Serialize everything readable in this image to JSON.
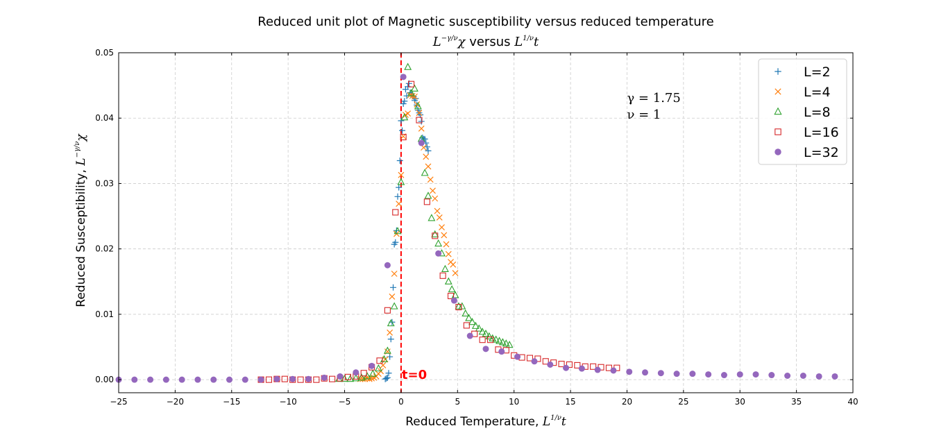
{
  "chart_data": {
    "type": "scatter",
    "title": "Reduced unit plot of Magnetic susceptibility versus reduced temperature",
    "subtitle": {
      "pre": "L",
      "sup": "−γ/ν",
      "mid": "χ  versus  L",
      "sup2": "1/ν",
      "post": "t"
    },
    "xlabel": {
      "text": "Reduced Temperature,  L",
      "sup": "1/ν",
      "post": "t"
    },
    "ylabel": {
      "text": "Reduced Susceptibility,  L",
      "sup": "−γ/ν",
      "post": "χ"
    },
    "xlim": [
      -25,
      40
    ],
    "ylim": [
      -0.002,
      0.05
    ],
    "xticks": [
      -25,
      -20,
      -15,
      -10,
      -5,
      0,
      5,
      10,
      15,
      20,
      25,
      30,
      35,
      40
    ],
    "yticks": [
      0.0,
      0.01,
      0.02,
      0.03,
      0.04,
      0.05
    ],
    "ytick_labels": [
      "0.00",
      "0.01",
      "0.02",
      "0.03",
      "0.04",
      "0.05"
    ],
    "grid": true,
    "legend_position": "top-right",
    "vline": {
      "x": 0,
      "label": "t=0",
      "color": "#ff0000"
    },
    "annotations": [
      "γ = 1.75",
      "ν = 1"
    ],
    "series": [
      {
        "name": "L=2",
        "marker": "plus",
        "color": "#1f77b4",
        "x": [
          -1.4,
          -1.3,
          -1.2,
          -1.1,
          -1.0,
          -0.9,
          -0.8,
          -0.7,
          -0.6,
          -0.5,
          -0.4,
          -0.3,
          -0.2,
          -0.1,
          0.0,
          0.1,
          0.2,
          0.3,
          0.4,
          0.5,
          0.6,
          0.7,
          0.8,
          0.9,
          1.0,
          1.1,
          1.2,
          1.3,
          1.4,
          1.5,
          1.6,
          1.7,
          1.8,
          1.9,
          2.0,
          2.1,
          2.2,
          2.3,
          2.4
        ],
        "y": [
          0.0001,
          0.0002,
          0.0003,
          0.001,
          0.0035,
          0.0062,
          0.0088,
          0.0141,
          0.0207,
          0.021,
          0.0228,
          0.028,
          0.0294,
          0.0335,
          0.0396,
          0.0381,
          0.0422,
          0.0426,
          0.0444,
          0.0434,
          0.0448,
          0.0453,
          0.0439,
          0.0436,
          0.0434,
          0.0433,
          0.0427,
          0.043,
          0.042,
          0.0412,
          0.0408,
          0.0405,
          0.0395,
          0.037,
          0.0368,
          0.0368,
          0.0362,
          0.0356,
          0.035
        ]
      },
      {
        "name": "L=4",
        "marker": "x",
        "color": "#ff7f0e",
        "x": [
          -3.6,
          -3.4,
          -3.2,
          -3.0,
          -2.8,
          -2.6,
          -2.4,
          -2.2,
          -2.0,
          -1.8,
          -1.6,
          -1.4,
          -1.2,
          -1.0,
          -0.8,
          -0.6,
          -0.4,
          -0.2,
          0.0,
          0.2,
          0.4,
          0.6,
          0.8,
          1.0,
          1.2,
          1.4,
          1.6,
          1.8,
          2.0,
          2.2,
          2.4,
          2.6,
          2.8,
          3.0,
          3.2,
          3.4,
          3.6,
          3.8,
          4.0,
          4.2,
          4.4,
          4.6,
          4.8
        ],
        "y": [
          0.0001,
          0.0001,
          0.0001,
          0.0002,
          0.0001,
          0.0002,
          0.0003,
          0.0005,
          0.0009,
          0.0013,
          0.0022,
          0.0031,
          0.0043,
          0.0072,
          0.0127,
          0.0162,
          0.0223,
          0.0269,
          0.0313,
          0.0372,
          0.0405,
          0.0407,
          0.0435,
          0.0434,
          0.0433,
          0.0421,
          0.0408,
          0.0384,
          0.0355,
          0.0341,
          0.0326,
          0.0306,
          0.0289,
          0.0277,
          0.0258,
          0.0248,
          0.0233,
          0.0221,
          0.0207,
          0.0192,
          0.018,
          0.0176,
          0.0163
        ]
      },
      {
        "name": "L=8",
        "marker": "triangle",
        "color": "#2ca02c",
        "x": [
          -5.5,
          -5.0,
          -4.5,
          -4.0,
          -3.5,
          -3.0,
          -2.5,
          -2.0,
          -1.5,
          -1.2,
          -0.9,
          -0.6,
          -0.3,
          0.0,
          0.3,
          0.6,
          0.9,
          1.2,
          1.5,
          1.8,
          2.1,
          2.4,
          2.7,
          3.0,
          3.3,
          3.6,
          3.9,
          4.2,
          4.5,
          4.8,
          5.1,
          5.4,
          5.7,
          6.0,
          6.3,
          6.6,
          6.9,
          7.2,
          7.5,
          7.8,
          8.1,
          8.4,
          8.7,
          9.0,
          9.3,
          9.6
        ],
        "y": [
          0.0001,
          0.0001,
          0.0001,
          0.0002,
          0.0003,
          0.0005,
          0.0009,
          0.0017,
          0.0031,
          0.0044,
          0.0086,
          0.0112,
          0.0227,
          0.0302,
          0.0401,
          0.0478,
          0.0438,
          0.0445,
          0.0418,
          0.0368,
          0.0316,
          0.0281,
          0.0247,
          0.0222,
          0.0208,
          0.0193,
          0.0169,
          0.015,
          0.0138,
          0.0129,
          0.0112,
          0.0112,
          0.0101,
          0.0094,
          0.0088,
          0.0082,
          0.0078,
          0.0073,
          0.007,
          0.0066,
          0.0063,
          0.0061,
          0.0059,
          0.0057,
          0.0055,
          0.0053
        ]
      },
      {
        "name": "L=16",
        "marker": "square",
        "color": "#d62728",
        "x": [
          -12.4,
          -11.7,
          -11.0,
          -10.3,
          -9.6,
          -8.9,
          -8.2,
          -7.5,
          -6.8,
          -6.1,
          -5.4,
          -4.7,
          -4.0,
          -3.3,
          -2.6,
          -1.9,
          -1.2,
          -0.5,
          0.2,
          0.9,
          1.6,
          2.3,
          3.0,
          3.7,
          4.4,
          5.1,
          5.8,
          6.5,
          7.2,
          7.9,
          8.6,
          9.3,
          10.0,
          10.7,
          11.4,
          12.1,
          12.8,
          13.5,
          14.2,
          14.9,
          15.6,
          16.3,
          17.0,
          17.7,
          18.4,
          19.1
        ],
        "y": [
          0.0,
          0.0,
          0.0001,
          0.0001,
          0.0,
          0.0,
          0.0,
          0.0,
          0.0002,
          0.0001,
          0.0002,
          0.0004,
          0.0005,
          0.001,
          0.0019,
          0.0029,
          0.0106,
          0.0256,
          0.0371,
          0.0452,
          0.0397,
          0.0272,
          0.022,
          0.0159,
          0.0128,
          0.0111,
          0.0083,
          0.007,
          0.0061,
          0.0061,
          0.0046,
          0.0045,
          0.0037,
          0.0034,
          0.0033,
          0.0032,
          0.0028,
          0.0026,
          0.0024,
          0.0023,
          0.0022,
          0.002,
          0.002,
          0.0019,
          0.0018,
          0.0018
        ]
      },
      {
        "name": "L=32",
        "marker": "circle",
        "color": "#9467bd",
        "x": [
          -25.0,
          -23.6,
          -22.2,
          -20.8,
          -19.4,
          -18.0,
          -16.6,
          -15.2,
          -13.8,
          -12.4,
          -11.0,
          -9.6,
          -8.2,
          -6.8,
          -5.4,
          -4.0,
          -2.6,
          -1.2,
          0.2,
          1.8,
          3.3,
          4.7,
          6.1,
          7.5,
          8.9,
          10.3,
          11.8,
          13.2,
          14.6,
          16.0,
          17.4,
          18.8,
          20.2,
          21.6,
          23.0,
          24.4,
          25.8,
          27.2,
          28.6,
          30.0,
          31.4,
          32.8,
          34.2,
          35.6,
          37.0,
          38.4
        ],
        "y": [
          0.0,
          0.0,
          0.0,
          0.0,
          0.0,
          0.0,
          0.0,
          0.0,
          0.0,
          0.0,
          0.0001,
          0.0001,
          0.0001,
          0.0003,
          0.0005,
          0.0011,
          0.0021,
          0.0175,
          0.0463,
          0.0362,
          0.0193,
          0.0121,
          0.0067,
          0.0047,
          0.0043,
          0.0035,
          0.0028,
          0.0023,
          0.0018,
          0.0017,
          0.0015,
          0.0014,
          0.0012,
          0.0011,
          0.001,
          0.0009,
          0.0009,
          0.0008,
          0.0007,
          0.0008,
          0.0008,
          0.0007,
          0.0006,
          0.0006,
          0.0005,
          0.0005
        ]
      }
    ]
  }
}
